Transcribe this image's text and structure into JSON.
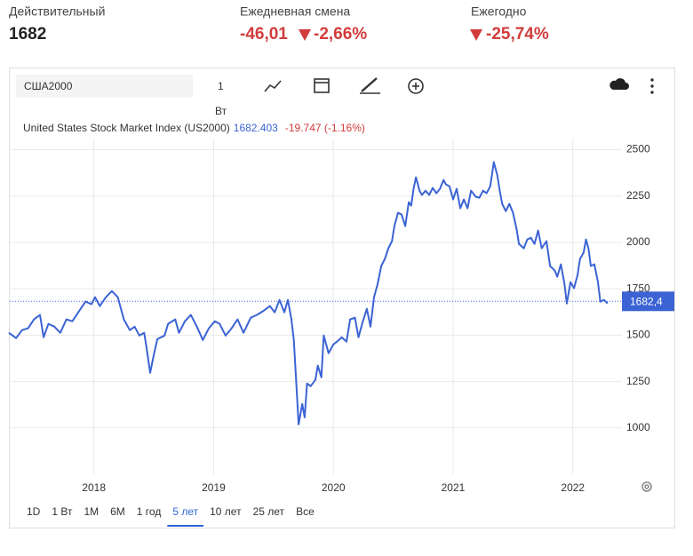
{
  "header": {
    "items": [
      {
        "label": "Действительный",
        "value": "1682"
      },
      {
        "label": "Ежедневная смена",
        "value": "-46,01",
        "change": "-2,66%"
      },
      {
        "label": "Ежегодно",
        "change": "-25,74%"
      }
    ]
  },
  "toolbar": {
    "symbol": "США2000",
    "interval": "1",
    "interval_unit": "Вт"
  },
  "chart_data": {
    "type": "line",
    "series": [
      {
        "name": "United States Stock Market Index (US2000)",
        "color": "#3b63d4",
        "x": [
          2017.29,
          2017.35,
          2017.4,
          2017.45,
          2017.5,
          2017.55,
          2017.58,
          2017.62,
          2017.67,
          2017.72,
          2017.77,
          2017.82,
          2017.88,
          2017.93,
          2017.98,
          2018.01,
          2018.05,
          2018.1,
          2018.15,
          2018.2,
          2018.25,
          2018.3,
          2018.34,
          2018.38,
          2018.42,
          2018.44,
          2018.47,
          2018.5,
          2018.53,
          2018.59,
          2018.62,
          2018.68,
          2018.71,
          2018.76,
          2018.81,
          2018.86,
          2018.91,
          2018.96,
          2019.01,
          2019.05,
          2019.1,
          2019.15,
          2019.2,
          2019.25,
          2019.31,
          2019.36,
          2019.42,
          2019.47,
          2019.51,
          2019.55,
          2019.59,
          2019.62,
          2019.65,
          2019.67,
          2019.69,
          2019.71,
          2019.74,
          2019.76,
          2019.78,
          2019.81,
          2019.85,
          2019.87,
          2019.9,
          2019.92,
          2019.96,
          2020.0,
          2020.03,
          2020.07,
          2020.11,
          2020.14,
          2020.18,
          2020.21,
          2020.24,
          2020.28,
          2020.31,
          2020.34,
          2020.37,
          2020.4,
          2020.43,
          2020.46,
          2020.49,
          2020.51,
          2020.54,
          2020.57,
          2020.6,
          2020.63,
          2020.65,
          2020.67,
          2020.69,
          2020.72,
          2020.74,
          2020.77,
          2020.8,
          2020.83,
          2020.86,
          2020.89,
          2020.92,
          2020.94,
          2020.97,
          2021.0,
          2021.03,
          2021.06,
          2021.09,
          2021.12,
          2021.15,
          2021.19,
          2021.22,
          2021.25,
          2021.28,
          2021.31,
          2021.34,
          2021.37,
          2021.39,
          2021.41,
          2021.44,
          2021.47,
          2021.5,
          2021.53,
          2021.55,
          2021.59,
          2021.62,
          2021.65,
          2021.68,
          2021.71,
          2021.74,
          2021.78,
          2021.81,
          2021.85,
          2021.87,
          2021.9,
          2021.93,
          2021.95,
          2021.98,
          2022.01,
          2022.04,
          2022.06,
          2022.09,
          2022.11,
          2022.13,
          2022.15,
          2022.18,
          2022.21,
          2022.23,
          2022.26,
          2022.29
        ],
        "values": [
          1513,
          1484,
          1527,
          1537,
          1585,
          1609,
          1489,
          1561,
          1546,
          1513,
          1585,
          1575,
          1633,
          1681,
          1667,
          1705,
          1657,
          1705,
          1738,
          1705,
          1585,
          1527,
          1546,
          1498,
          1513,
          1431,
          1297,
          1393,
          1479,
          1498,
          1561,
          1585,
          1513,
          1575,
          1609,
          1546,
          1474,
          1537,
          1575,
          1561,
          1498,
          1537,
          1585,
          1513,
          1594,
          1609,
          1633,
          1657,
          1623,
          1690,
          1623,
          1690,
          1585,
          1474,
          1249,
          1019,
          1129,
          1057,
          1240,
          1225,
          1259,
          1336,
          1273,
          1498,
          1403,
          1450,
          1465,
          1489,
          1465,
          1585,
          1594,
          1489,
          1561,
          1642,
          1546,
          1705,
          1777,
          1873,
          1911,
          1969,
          2007,
          2088,
          2160,
          2150,
          2088,
          2217,
          2198,
          2289,
          2351,
          2279,
          2256,
          2279,
          2256,
          2294,
          2265,
          2289,
          2337,
          2313,
          2303,
          2232,
          2289,
          2184,
          2232,
          2184,
          2279,
          2246,
          2241,
          2279,
          2265,
          2303,
          2433,
          2361,
          2279,
          2208,
          2169,
          2208,
          2160,
          2073,
          1992,
          1968,
          2016,
          2025,
          1992,
          2064,
          1968,
          2007,
          1873,
          1848,
          1815,
          1882,
          1777,
          1671,
          1786,
          1753,
          1825,
          1911,
          1945,
          2016,
          1968,
          1873,
          1882,
          1786,
          1681,
          1690,
          1671
        ]
      }
    ],
    "legend_value": "1682.403",
    "legend_change": "-19.747 (-1.16%)",
    "last_price": {
      "value": 1682.4,
      "label": "1682,4"
    },
    "xlim": [
      2017.29,
      2022.41
    ],
    "xticks": [
      2018,
      2019,
      2020,
      2021,
      2022
    ],
    "ylim": [
      750,
      2560
    ],
    "yticks": [
      1000,
      1250,
      1500,
      1750,
      2000,
      2250,
      2500
    ],
    "grid": true
  },
  "range_buttons": {
    "items": [
      "1D",
      "1 Вт",
      "1M",
      "6M",
      "1 год",
      "5 лет",
      "10 лет",
      "25 лет",
      "Все"
    ],
    "active": 5
  }
}
